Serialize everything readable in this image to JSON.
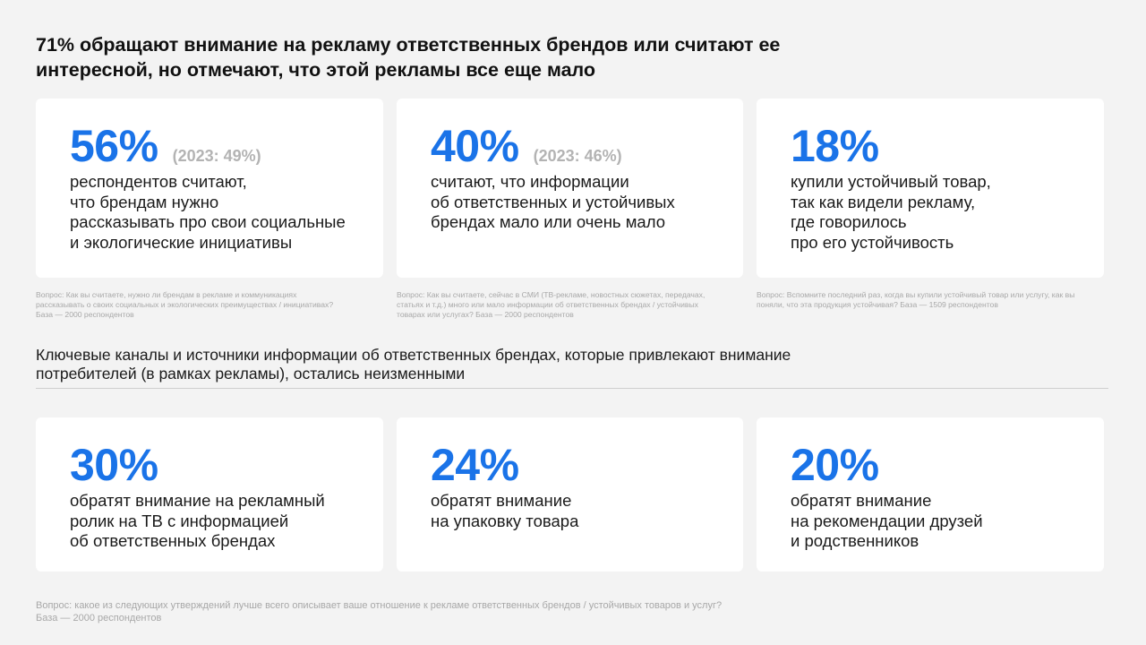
{
  "title": "71% обращают внимание на рекламу ответственных брендов или считают ее интересной, но отмечают, что этой рекламы все еще мало",
  "top_cards": [
    {
      "value": "56%",
      "previous": "(2023: 49%)",
      "lines": [
        "респондентов считают,",
        "что брендам нужно",
        "рассказывать про свои социальные",
        "и экологические инициативы"
      ],
      "note": "Вопрос: Как вы считаете, нужно ли брендам в рекламе и коммуникациях рассказывать о своих социальных и экологических преимуществах / инициативах? База — 2000 респондентов"
    },
    {
      "value": "40%",
      "previous": "(2023: 46%)",
      "lines": [
        "считают, что информации",
        "об ответственных и устойчивых",
        "брендах мало или очень мало"
      ],
      "note": "Вопрос: Как вы считаете, сейчас в СМИ (ТВ-рекламе, новостных сюжетах, передачах, статьях и т.д.) много или мало информации об ответственных брендах / устойчивых товарах или услугах? База — 2000 респондентов"
    },
    {
      "value": "18%",
      "previous": "",
      "lines": [
        "купили устойчивый товар,",
        "так как видели рекламу,",
        "где говорилось",
        "про его устойчивость"
      ],
      "note": "Вопрос: Вспомните последний раз, когда вы купили устойчивый товар или услугу, как вы поняли, что эта продукция устойчивая? База — 1509 респондентов"
    }
  ],
  "subtitle": "Ключевые каналы и источники информации об ответственных брендах, которые привлекают внимание потребителей (в рамках рекламы), остались неизменными",
  "bottom_cards": [
    {
      "value": "30%",
      "lines": [
        "обратят внимание на рекламный",
        "ролик на ТВ с информацией",
        "об ответственных брендах"
      ]
    },
    {
      "value": "24%",
      "lines": [
        "обратят внимание",
        "на упаковку товара"
      ]
    },
    {
      "value": "20%",
      "lines": [
        "обратят внимание",
        "на рекомендации друзей",
        "и родственников"
      ]
    }
  ],
  "footer": {
    "line1": "Вопрос: какое из следующих утверждений лучше всего описывает ваше отношение к рекламе ответственных брендов / устойчивых товаров и услуг?",
    "line2": "База — 2000 респондентов"
  },
  "colors": {
    "accent": "#1a73e8",
    "muted": "#b3b3b3",
    "background": "#f3f3f3"
  }
}
